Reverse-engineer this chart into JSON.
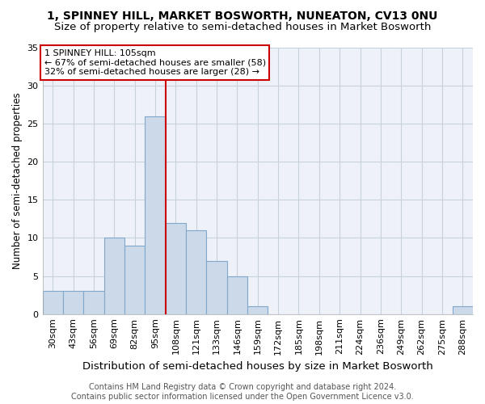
{
  "title": "1, SPINNEY HILL, MARKET BOSWORTH, NUNEATON, CV13 0NU",
  "subtitle": "Size of property relative to semi-detached houses in Market Bosworth",
  "xlabel": "Distribution of semi-detached houses by size in Market Bosworth",
  "ylabel": "Number of semi-detached properties",
  "footnote": "Contains HM Land Registry data © Crown copyright and database right 2024.\nContains public sector information licensed under the Open Government Licence v3.0.",
  "bin_labels": [
    "30sqm",
    "43sqm",
    "56sqm",
    "69sqm",
    "82sqm",
    "95sqm",
    "108sqm",
    "121sqm",
    "133sqm",
    "146sqm",
    "159sqm",
    "172sqm",
    "185sqm",
    "198sqm",
    "211sqm",
    "224sqm",
    "236sqm",
    "249sqm",
    "262sqm",
    "275sqm",
    "288sqm"
  ],
  "bin_values": [
    3,
    3,
    3,
    10,
    9,
    26,
    12,
    11,
    7,
    5,
    1,
    0,
    0,
    0,
    0,
    0,
    0,
    0,
    0,
    0,
    1
  ],
  "bar_color": "#ccd9e8",
  "bar_edge_color": "#7fa8cc",
  "vline_x_index": 6,
  "vline_color": "#cc0000",
  "annotation_line1": "1 SPINNEY HILL: 105sqm",
  "annotation_line2": "← 67% of semi-detached houses are smaller (58)",
  "annotation_line3": "32% of semi-detached houses are larger (28) →",
  "annotation_box_color": "#ffffff",
  "annotation_box_edge": "#cc0000",
  "ylim": [
    0,
    35
  ],
  "yticks": [
    0,
    5,
    10,
    15,
    20,
    25,
    30,
    35
  ],
  "background_color": "#eef2f8",
  "grid_color": "#c8d0dc",
  "title_fontsize": 10,
  "subtitle_fontsize": 9.5,
  "xlabel_fontsize": 9.5,
  "ylabel_fontsize": 8.5,
  "tick_fontsize": 8,
  "annotation_fontsize": 8,
  "footnote_fontsize": 7
}
